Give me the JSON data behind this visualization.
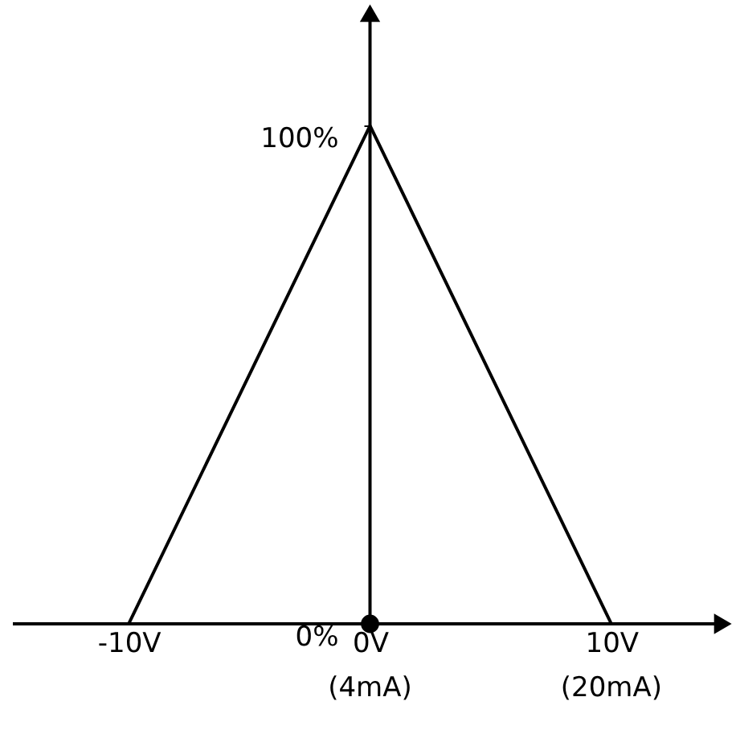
{
  "chart_data": {
    "type": "line",
    "xlim": [
      -14.8,
      14.5
    ],
    "ylim": [
      0,
      122
    ],
    "xticks": [
      {
        "value": -10,
        "label": "-10V"
      },
      {
        "value": 0,
        "label": "0V"
      },
      {
        "value": 10,
        "label": "10V"
      }
    ],
    "yticks": [
      {
        "value": 0,
        "label": "0%"
      },
      {
        "value": 100,
        "label": "100%"
      }
    ],
    "annotations": [
      {
        "text": "(4mA)",
        "x": 0,
        "y": 0
      },
      {
        "text": "(20mA)",
        "x": 10,
        "y": 0
      }
    ],
    "grid": false,
    "series": [
      {
        "color": "#000000",
        "x": [
          -10,
          0,
          10
        ],
        "values": [
          0,
          100,
          0
        ],
        "marker": "none",
        "line_style": "solid"
      },
      {
        "type": "scatter",
        "color": "#000000",
        "x": [
          0
        ],
        "values": [
          0
        ],
        "marker": "circle"
      }
    ]
  }
}
